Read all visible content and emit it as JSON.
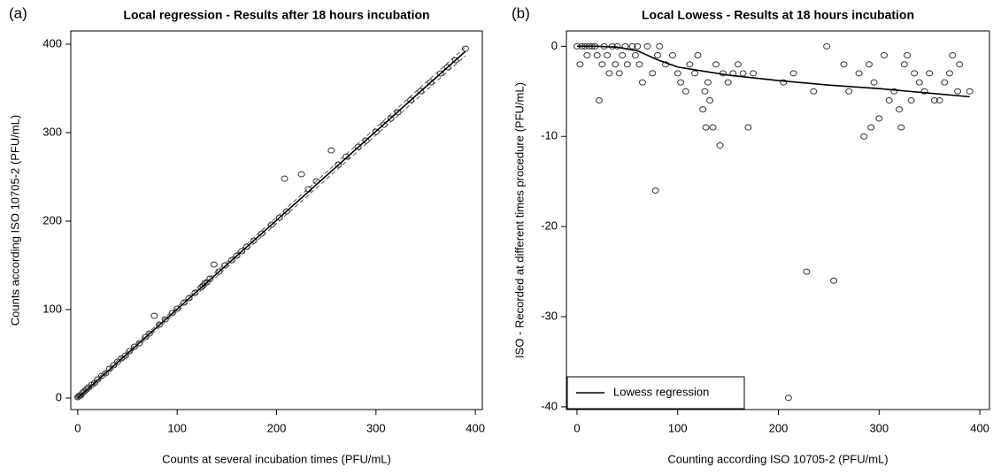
{
  "chart_data": [
    {
      "type": "scatter",
      "panel_label": "(a)",
      "title": "Local regression - Results after 18 hours incubation",
      "xlabel": "Counts at several incubation times (PFU/mL)",
      "ylabel": "Counts according ISO 10705-2 (PFU/mL)",
      "xlim": [
        -7,
        407
      ],
      "ylim": [
        -13,
        415
      ],
      "xticks": [
        0,
        100,
        200,
        300,
        400
      ],
      "yticks": [
        0,
        100,
        200,
        300,
        400
      ],
      "points": {
        "x": [
          0,
          1,
          2,
          3,
          5,
          7,
          9,
          11,
          14,
          17,
          20,
          24,
          28,
          32,
          36,
          40,
          44,
          48,
          52,
          57,
          62,
          68,
          72,
          77,
          82,
          88,
          95,
          100,
          107,
          112,
          118,
          124,
          126,
          128,
          130,
          133,
          137,
          142,
          148,
          155,
          160,
          165,
          170,
          177,
          185,
          195,
          203,
          208,
          210,
          225,
          232,
          240,
          255,
          262,
          270,
          282,
          290,
          300,
          308,
          315,
          322,
          335,
          345,
          355,
          365,
          372,
          380,
          390
        ],
        "y": [
          1,
          2,
          3,
          3,
          6,
          8,
          10,
          12,
          15,
          17,
          21,
          25,
          28,
          33,
          37,
          41,
          45,
          48,
          53,
          58,
          62,
          69,
          73,
          93,
          83,
          89,
          96,
          101,
          108,
          113,
          119,
          125,
          127,
          130,
          131,
          135,
          151,
          143,
          150,
          156,
          161,
          166,
          171,
          178,
          186,
          196,
          204,
          248,
          211,
          253,
          236,
          245,
          280,
          264,
          273,
          284,
          291,
          301,
          309,
          316,
          323,
          337,
          347,
          357,
          367,
          374,
          382,
          395
        ]
      },
      "lines": [
        {
          "x": [
            0,
            390
          ],
          "y": [
            0,
            392
          ],
          "color": "#000000",
          "dashed": false
        },
        {
          "x": [
            0,
            390
          ],
          "y": [
            -2,
            387
          ],
          "color": "#555555",
          "dashed": true
        },
        {
          "x": [
            0,
            390
          ],
          "y": [
            2,
            397
          ],
          "color": "#555555",
          "dashed": true
        }
      ]
    },
    {
      "type": "scatter",
      "panel_label": "(b)",
      "title": "Local Lowess - Results at 18 hours incubation",
      "xlabel": "Counting according ISO 10705-2 (PFU/mL)",
      "ylabel": "ISO - Recorded at different times procedure (PFU/mL)",
      "xlim": [
        -10.5,
        409.6
      ],
      "ylim": [
        -40.3,
        1.7
      ],
      "xticks": [
        0,
        100,
        200,
        300,
        400
      ],
      "yticks": [
        0,
        -10,
        -20,
        -30,
        -40
      ],
      "legend": "lower left",
      "points": {
        "x": [
          0,
          3,
          5,
          8,
          10,
          12,
          15,
          18,
          20,
          22,
          25,
          27,
          30,
          32,
          35,
          38,
          40,
          42,
          45,
          48,
          50,
          55,
          58,
          60,
          62,
          65,
          70,
          75,
          78,
          80,
          82,
          88,
          95,
          100,
          103,
          108,
          112,
          117,
          120,
          125,
          127,
          128,
          130,
          132,
          135,
          138,
          142,
          145,
          150,
          155,
          160,
          165,
          170,
          175,
          205,
          210,
          215,
          228,
          235,
          248,
          255,
          265,
          270,
          280,
          285,
          290,
          292,
          295,
          300,
          305,
          310,
          315,
          320,
          322,
          325,
          328,
          332,
          335,
          340,
          345,
          350,
          355,
          360,
          365,
          370,
          373,
          378,
          380,
          390
        ],
        "y": [
          0,
          -2,
          0,
          0,
          -1,
          0,
          0,
          0,
          -1,
          -6,
          -2,
          0,
          -1,
          -3,
          0,
          -2,
          0,
          -3,
          -1,
          0,
          -2,
          0,
          -1,
          0,
          -2,
          -4,
          0,
          -3,
          -16,
          -1,
          0,
          -2,
          -1,
          -3,
          -4,
          -5,
          -2,
          -3,
          -1,
          -7,
          -5,
          -9,
          -4,
          -6,
          -9,
          -2,
          -11,
          -3,
          -4,
          -3,
          -2,
          -3,
          -9,
          -3,
          -4,
          -39,
          -3,
          -25,
          -5,
          0,
          -26,
          -2,
          -5,
          -3,
          -10,
          -2,
          -9,
          -4,
          -8,
          -1,
          -6,
          -5,
          -7,
          -9,
          -2,
          -1,
          -6,
          -3,
          -4,
          -5,
          -3,
          -6,
          -6,
          -4,
          -3,
          -1,
          -5,
          -2,
          -5
        ]
      },
      "lines": [
        {
          "name": "Lowess regression",
          "x": [
            0,
            20,
            40,
            60,
            80,
            100,
            150,
            200,
            250,
            300,
            350,
            390
          ],
          "y": [
            0,
            0,
            -0.1,
            -0.5,
            -1.5,
            -2.3,
            -3.2,
            -3.8,
            -4.3,
            -4.7,
            -5.2,
            -5.6
          ],
          "color": "#000000",
          "dashed": false
        }
      ]
    }
  ]
}
